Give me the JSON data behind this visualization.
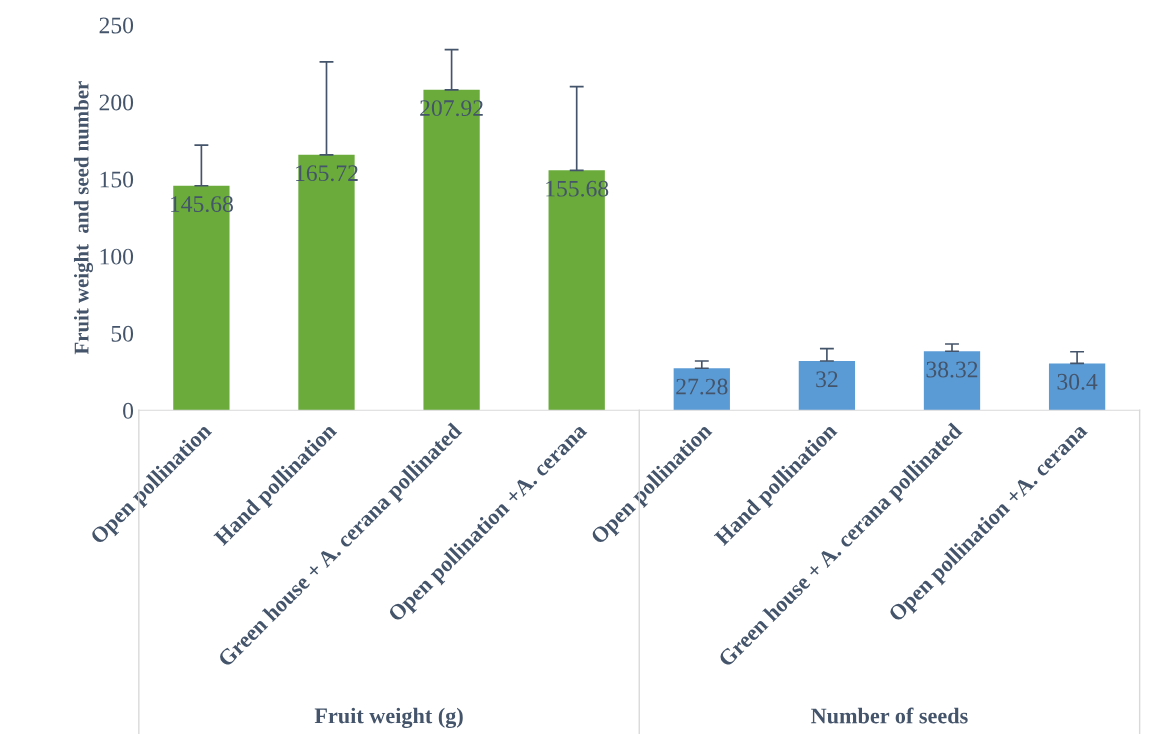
{
  "chart_data": {
    "type": "bar",
    "categories": [
      "Open pollination",
      "Hand pollination",
      "Green house + A. cerana pollinated",
      "Open pollination +A. cerana",
      "Open pollination",
      "Hand pollination",
      "Green house + A. cerana pollinated",
      "Open pollination +A. cerana"
    ],
    "values": [
      145.68,
      165.72,
      207.92,
      155.68,
      27.28,
      32,
      38.32,
      30.4
    ],
    "colors": [
      "#6aab3c",
      "#6aab3c",
      "#6aab3c",
      "#6aab3c",
      "#5b9bd5",
      "#5b9bd5",
      "#5b9bd5",
      "#5b9bd5"
    ],
    "errors": [
      [
        145.68,
        172
      ],
      [
        165.72,
        226
      ],
      [
        207.92,
        234
      ],
      [
        155.68,
        210
      ],
      [
        27.28,
        32
      ],
      [
        32,
        40
      ],
      [
        38.32,
        43
      ],
      [
        30.4,
        38
      ]
    ],
    "data_labels": true,
    "ylabel": "Fruit weight  and seed number",
    "ylim": [
      0,
      250
    ],
    "yticks": [
      0,
      50,
      100,
      150,
      200,
      250
    ],
    "annotations": [
      "Fruit weight (g)",
      "Number of seeds"
    ],
    "grid": false
  }
}
